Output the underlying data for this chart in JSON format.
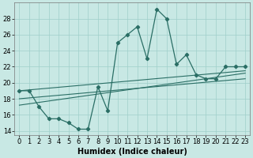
{
  "x_data": [
    0,
    1,
    2,
    3,
    4,
    5,
    6,
    7,
    8,
    9,
    10,
    11,
    12,
    13,
    14,
    15,
    16,
    17,
    18,
    19,
    20,
    21,
    22,
    23
  ],
  "main_line": [
    19.0,
    19.0,
    17.0,
    15.5,
    15.5,
    15.0,
    14.2,
    14.2,
    19.5,
    16.5,
    25.0,
    26.0,
    27.0,
    23.0,
    29.2,
    28.0,
    22.3,
    23.5,
    21.0,
    20.5,
    20.5,
    22.0,
    22.0,
    22.0
  ],
  "trend_line1_x": [
    0,
    23
  ],
  "trend_line1_y": [
    19.0,
    21.5
  ],
  "trend_line2_x": [
    0,
    23
  ],
  "trend_line2_y": [
    18.0,
    20.5
  ],
  "trend_line3_x": [
    0,
    23
  ],
  "trend_line3_y": [
    17.2,
    21.2
  ],
  "line_color": "#2a6e65",
  "bg_color": "#c8e8e4",
  "grid_color": "#9fcfca",
  "xlabel": "Humidex (Indice chaleur)",
  "ylim": [
    13.5,
    30.0
  ],
  "xlim": [
    -0.5,
    23.5
  ],
  "yticks": [
    14,
    16,
    18,
    20,
    22,
    24,
    26,
    28
  ],
  "xticks": [
    0,
    1,
    2,
    3,
    4,
    5,
    6,
    7,
    8,
    9,
    10,
    11,
    12,
    13,
    14,
    15,
    16,
    17,
    18,
    19,
    20,
    21,
    22,
    23
  ],
  "tick_fontsize": 6.0,
  "xlabel_fontsize": 7.0
}
